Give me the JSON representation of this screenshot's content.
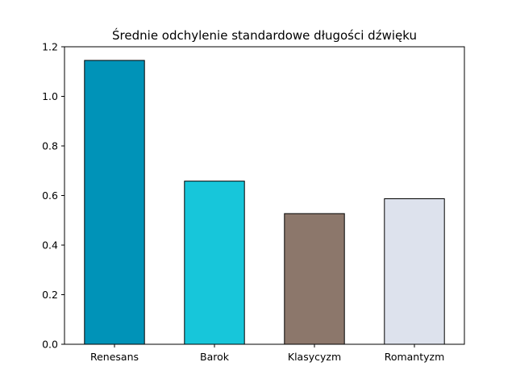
{
  "chart_data": {
    "type": "bar",
    "title": "Średnie odchylenie standardowe długości dźwięku",
    "xlabel": "",
    "ylabel": "",
    "categories": [
      "Renesans",
      "Barok",
      "Klasycyzm",
      "Romantyzm"
    ],
    "values": [
      1.145,
      0.658,
      0.527,
      0.587
    ],
    "colors": [
      "#0093b8",
      "#17c6da",
      "#8c776b",
      "#dde2ed"
    ],
    "edge_color": "#000000",
    "ylim": [
      0,
      1.2
    ],
    "yticks": [
      0.0,
      0.2,
      0.4,
      0.6,
      0.8,
      1.0,
      1.2
    ],
    "ytick_labels": [
      "0.0",
      "0.2",
      "0.4",
      "0.6",
      "0.8",
      "1.0",
      "1.2"
    ],
    "grid": false,
    "legend": "none"
  }
}
